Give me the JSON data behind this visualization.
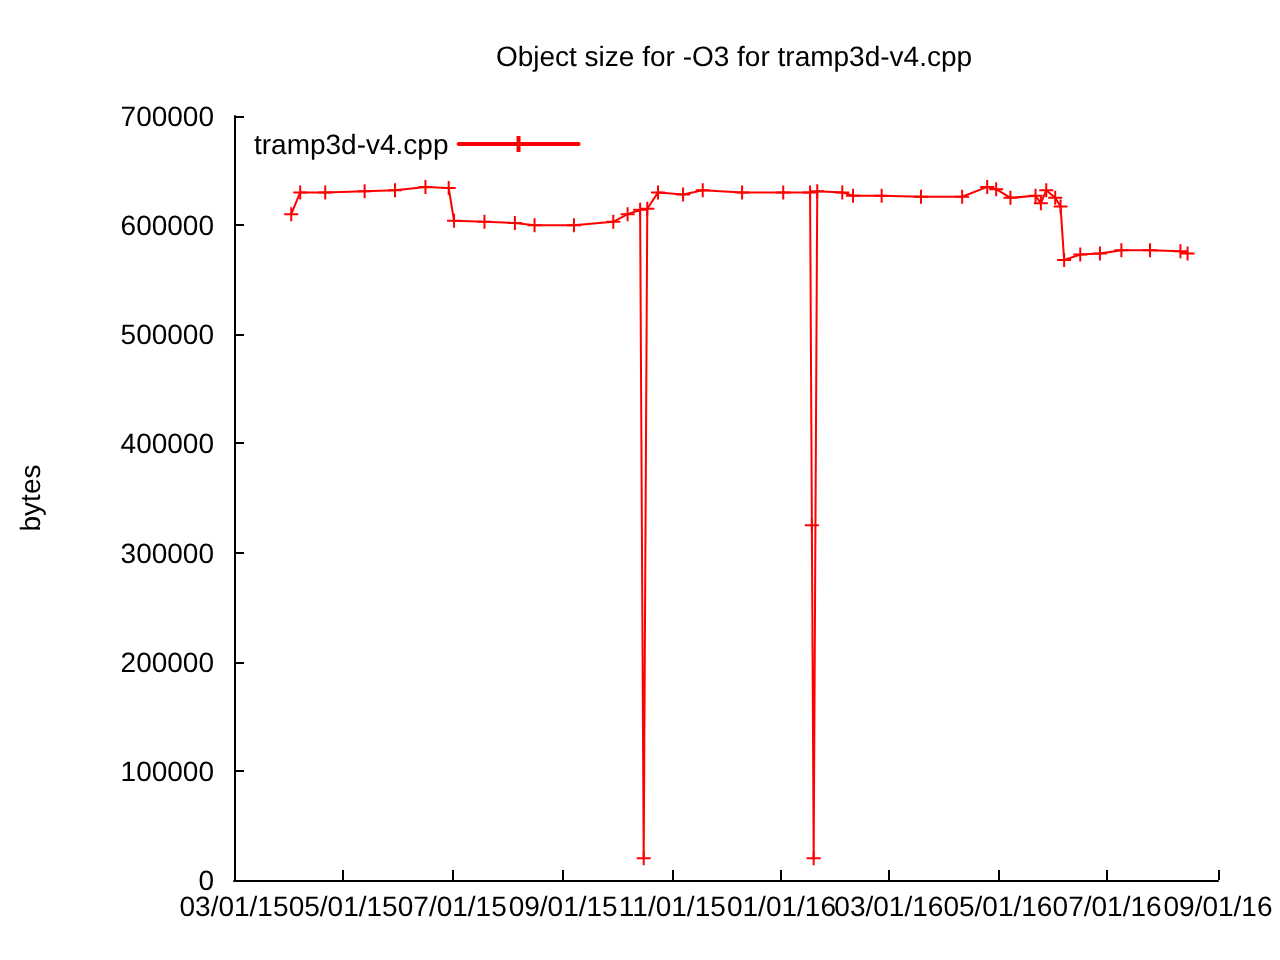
{
  "chart_data": {
    "type": "line",
    "title": "Object size for -O3 for tramp3d-v4.cpp",
    "ylabel": "bytes",
    "series": [
      {
        "name": "tramp3d-v4.cpp",
        "color": "#ff0000",
        "x": [
          "2015-04-02",
          "2015-04-07",
          "2015-04-21",
          "2015-05-13",
          "2015-05-30",
          "2015-06-16",
          "2015-06-29",
          "2015-07-02",
          "2015-07-19",
          "2015-08-05",
          "2015-08-16",
          "2015-09-07",
          "2015-09-29",
          "2015-10-07",
          "2015-10-14",
          "2015-10-16",
          "2015-10-18",
          "2015-10-24",
          "2015-11-07",
          "2015-11-18",
          "2015-12-10",
          "2016-01-02",
          "2016-01-17",
          "2016-01-18",
          "2016-01-19",
          "2016-01-21",
          "2016-02-04",
          "2016-02-10",
          "2016-02-26",
          "2016-03-19",
          "2016-04-11",
          "2016-04-25",
          "2016-04-30",
          "2016-05-08",
          "2016-05-22",
          "2016-05-25",
          "2016-05-28",
          "2016-06-02",
          "2016-06-05",
          "2016-06-07",
          "2016-06-16",
          "2016-06-27",
          "2016-07-09",
          "2016-07-25",
          "2016-08-11",
          "2016-08-15"
        ],
        "values": [
          610000,
          630000,
          630000,
          631000,
          632000,
          635000,
          634000,
          604000,
          603000,
          602000,
          600000,
          600000,
          603000,
          610000,
          614000,
          20000,
          615000,
          630000,
          628000,
          632000,
          630000,
          630000,
          630000,
          325000,
          20000,
          631000,
          630000,
          627000,
          627000,
          626000,
          626000,
          635000,
          633000,
          625000,
          627000,
          620000,
          632000,
          625000,
          617000,
          568000,
          573000,
          574000,
          577000,
          577000,
          576000,
          574000
        ]
      }
    ],
    "xlim": [
      "2015-03-01",
      "2016-09-01"
    ],
    "xticks": [
      {
        "value": "2015-03-01",
        "label": "03/01/15"
      },
      {
        "value": "2015-05-01",
        "label": "05/01/15"
      },
      {
        "value": "2015-07-01",
        "label": "07/01/15"
      },
      {
        "value": "2015-09-01",
        "label": "09/01/15"
      },
      {
        "value": "2015-11-01",
        "label": "11/01/15"
      },
      {
        "value": "2016-01-01",
        "label": "01/01/16"
      },
      {
        "value": "2016-03-01",
        "label": "03/01/16"
      },
      {
        "value": "2016-05-01",
        "label": "05/01/16"
      },
      {
        "value": "2016-07-01",
        "label": "07/01/16"
      },
      {
        "value": "2016-09-01",
        "label": "09/01/16"
      }
    ],
    "ylim": [
      0,
      700000
    ],
    "yticks": [
      0,
      100000,
      200000,
      300000,
      400000,
      500000,
      600000,
      700000
    ],
    "legend": "top left",
    "marker": "cross",
    "line_style": "solid",
    "grid": false
  }
}
